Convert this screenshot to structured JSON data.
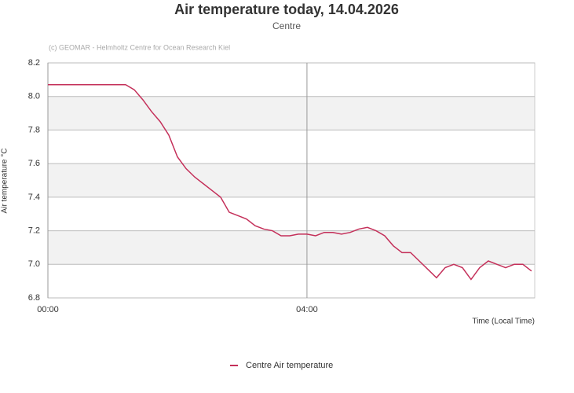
{
  "chart_data": {
    "type": "line",
    "title": "Air temperature today, 14.04.2026",
    "subtitle": "Centre",
    "credit": "(c) GEOMAR - Helmholtz Centre for Ocean Research Kiel",
    "x_label": "Time (Local Time)",
    "y_label": "Air temperature °C",
    "x": [
      0,
      72,
      80,
      88,
      96,
      104,
      112,
      120,
      128,
      136,
      144,
      152,
      160,
      168,
      176,
      184,
      192,
      200,
      208,
      216,
      224,
      232,
      240,
      248,
      256,
      264,
      272,
      280,
      288,
      296,
      304,
      312,
      320,
      328,
      336,
      344,
      352,
      360,
      368,
      376,
      384,
      392,
      400,
      408,
      416,
      424,
      432,
      440,
      448
    ],
    "series": [
      {
        "name": "Centre Air temperature",
        "color": "#c4305a",
        "values": [
          8.07,
          8.07,
          8.04,
          7.98,
          7.91,
          7.85,
          7.77,
          7.64,
          7.57,
          7.52,
          7.48,
          7.44,
          7.4,
          7.31,
          7.29,
          7.27,
          7.23,
          7.21,
          7.2,
          7.17,
          7.17,
          7.18,
          7.18,
          7.17,
          7.19,
          7.19,
          7.18,
          7.19,
          7.21,
          7.22,
          7.2,
          7.17,
          7.11,
          7.07,
          7.07,
          7.02,
          6.97,
          6.92,
          6.98,
          7.0,
          6.98,
          6.91,
          6.98,
          7.02,
          7.0,
          6.98,
          7.0,
          7.0,
          6.96
        ]
      }
    ],
    "xlim": [
      0,
      451
    ],
    "xticks": [
      {
        "value": 0,
        "label": "00:00"
      },
      {
        "value": 240,
        "label": "04:00"
      }
    ],
    "ylim": [
      6.8,
      8.2
    ],
    "yticks": [
      {
        "value": 6.8,
        "label": "6.8"
      },
      {
        "value": 7.0,
        "label": "7.0"
      },
      {
        "value": 7.2,
        "label": "7.2"
      },
      {
        "value": 7.4,
        "label": "7.4"
      },
      {
        "value": 7.6,
        "label": "7.6"
      },
      {
        "value": 7.8,
        "label": "7.8"
      },
      {
        "value": 8.0,
        "label": "8.0"
      },
      {
        "value": 8.2,
        "label": "8.2"
      }
    ],
    "grid": true
  }
}
